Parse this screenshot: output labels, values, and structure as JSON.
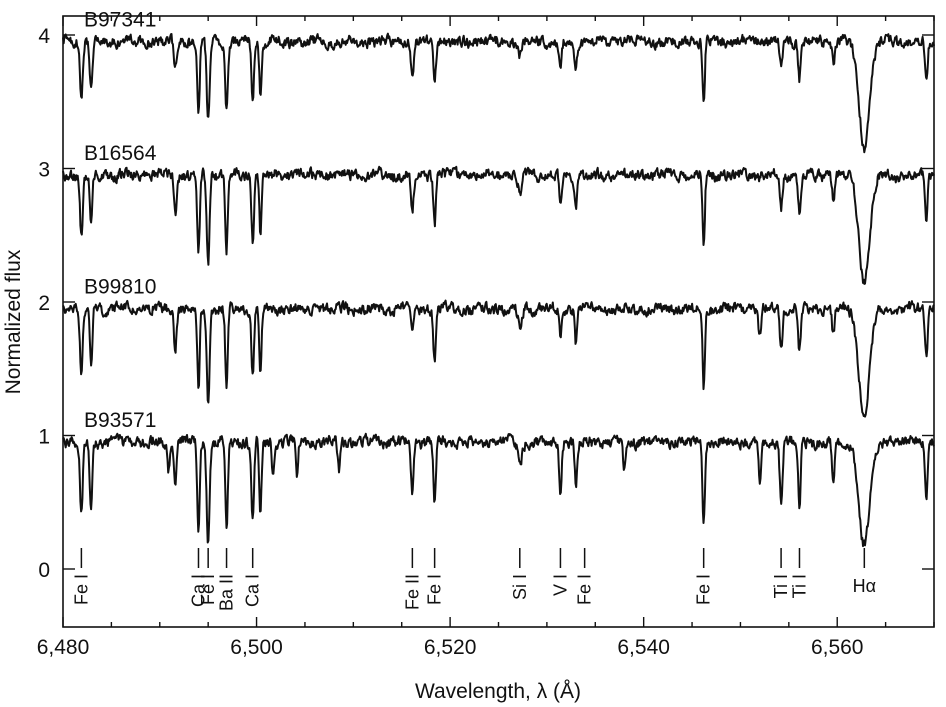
{
  "chart_data": {
    "type": "line",
    "xlabel": "Wavelength, λ (Å)",
    "ylabel": "Normalized flux",
    "xlim": [
      6480,
      6570
    ],
    "ylim": [
      -0.45,
      4.3
    ],
    "xticks": [
      6480,
      6500,
      6520,
      6540,
      6560
    ],
    "xtick_labels": [
      "6,480",
      "6,500",
      "6,520",
      "6,540",
      "6,560"
    ],
    "yticks": [
      0,
      1,
      2,
      3,
      4
    ],
    "ytick_labels": [
      "0",
      "1",
      "2",
      "3",
      "4"
    ],
    "grid": false,
    "series": [
      {
        "name": "B97341",
        "continuum": 3.95,
        "lines": [
          {
            "x": 6481.9,
            "depth": 0.38,
            "width": 0.14
          },
          {
            "x": 6482.9,
            "depth": 0.34,
            "width": 0.13
          },
          {
            "x": 6491.6,
            "depth": 0.22,
            "width": 0.14
          },
          {
            "x": 6494.0,
            "depth": 0.55,
            "width": 0.13
          },
          {
            "x": 6495.0,
            "depth": 0.62,
            "width": 0.15
          },
          {
            "x": 6496.9,
            "depth": 0.5,
            "width": 0.13
          },
          {
            "x": 6499.6,
            "depth": 0.42,
            "width": 0.13
          },
          {
            "x": 6500.4,
            "depth": 0.38,
            "width": 0.12
          },
          {
            "x": 6516.1,
            "depth": 0.26,
            "width": 0.14
          },
          {
            "x": 6518.4,
            "depth": 0.32,
            "width": 0.13
          },
          {
            "x": 6527.2,
            "depth": 0.12,
            "width": 0.2
          },
          {
            "x": 6531.4,
            "depth": 0.18,
            "width": 0.13
          },
          {
            "x": 6533.0,
            "depth": 0.2,
            "width": 0.13
          },
          {
            "x": 6546.2,
            "depth": 0.45,
            "width": 0.12
          },
          {
            "x": 6554.2,
            "depth": 0.22,
            "width": 0.13
          },
          {
            "x": 6556.1,
            "depth": 0.26,
            "width": 0.13
          },
          {
            "x": 6559.6,
            "depth": 0.16,
            "width": 0.13
          },
          {
            "x": 6562.8,
            "depth": 0.78,
            "width": 0.55
          },
          {
            "x": 6569.2,
            "depth": 0.3,
            "width": 0.13
          }
        ]
      },
      {
        "name": "B16564",
        "continuum": 2.95,
        "lines": [
          {
            "x": 6481.9,
            "depth": 0.45,
            "width": 0.14
          },
          {
            "x": 6482.9,
            "depth": 0.4,
            "width": 0.13
          },
          {
            "x": 6491.6,
            "depth": 0.28,
            "width": 0.14
          },
          {
            "x": 6494.0,
            "depth": 0.6,
            "width": 0.13
          },
          {
            "x": 6495.0,
            "depth": 0.68,
            "width": 0.15
          },
          {
            "x": 6496.9,
            "depth": 0.55,
            "width": 0.13
          },
          {
            "x": 6499.6,
            "depth": 0.48,
            "width": 0.13
          },
          {
            "x": 6500.4,
            "depth": 0.44,
            "width": 0.12
          },
          {
            "x": 6516.1,
            "depth": 0.28,
            "width": 0.14
          },
          {
            "x": 6518.4,
            "depth": 0.36,
            "width": 0.13
          },
          {
            "x": 6527.2,
            "depth": 0.14,
            "width": 0.2
          },
          {
            "x": 6531.4,
            "depth": 0.2,
            "width": 0.13
          },
          {
            "x": 6533.0,
            "depth": 0.24,
            "width": 0.13
          },
          {
            "x": 6546.2,
            "depth": 0.52,
            "width": 0.12
          },
          {
            "x": 6554.2,
            "depth": 0.26,
            "width": 0.13
          },
          {
            "x": 6556.1,
            "depth": 0.3,
            "width": 0.13
          },
          {
            "x": 6559.6,
            "depth": 0.2,
            "width": 0.13
          },
          {
            "x": 6562.8,
            "depth": 0.8,
            "width": 0.55
          },
          {
            "x": 6569.2,
            "depth": 0.34,
            "width": 0.13
          }
        ]
      },
      {
        "name": "B99810",
        "continuum": 1.95,
        "lines": [
          {
            "x": 6481.9,
            "depth": 0.48,
            "width": 0.14
          },
          {
            "x": 6482.9,
            "depth": 0.42,
            "width": 0.13
          },
          {
            "x": 6491.6,
            "depth": 0.3,
            "width": 0.14
          },
          {
            "x": 6494.0,
            "depth": 0.62,
            "width": 0.13
          },
          {
            "x": 6495.0,
            "depth": 0.7,
            "width": 0.15
          },
          {
            "x": 6496.9,
            "depth": 0.58,
            "width": 0.13
          },
          {
            "x": 6499.6,
            "depth": 0.5,
            "width": 0.13
          },
          {
            "x": 6500.4,
            "depth": 0.46,
            "width": 0.12
          },
          {
            "x": 6516.1,
            "depth": 0.22,
            "width": 0.14
          },
          {
            "x": 6518.4,
            "depth": 0.4,
            "width": 0.13
          },
          {
            "x": 6527.2,
            "depth": 0.14,
            "width": 0.2
          },
          {
            "x": 6531.4,
            "depth": 0.22,
            "width": 0.13
          },
          {
            "x": 6533.0,
            "depth": 0.26,
            "width": 0.13
          },
          {
            "x": 6546.2,
            "depth": 0.58,
            "width": 0.12
          },
          {
            "x": 6552.0,
            "depth": 0.22,
            "width": 0.13
          },
          {
            "x": 6554.2,
            "depth": 0.3,
            "width": 0.13
          },
          {
            "x": 6556.1,
            "depth": 0.34,
            "width": 0.13
          },
          {
            "x": 6559.6,
            "depth": 0.22,
            "width": 0.13
          },
          {
            "x": 6562.8,
            "depth": 0.8,
            "width": 0.55
          },
          {
            "x": 6569.2,
            "depth": 0.36,
            "width": 0.13
          }
        ]
      },
      {
        "name": "B93571",
        "continuum": 0.95,
        "lines": [
          {
            "x": 6481.9,
            "depth": 0.55,
            "width": 0.14
          },
          {
            "x": 6482.9,
            "depth": 0.5,
            "width": 0.13
          },
          {
            "x": 6490.9,
            "depth": 0.22,
            "width": 0.13
          },
          {
            "x": 6491.6,
            "depth": 0.3,
            "width": 0.14
          },
          {
            "x": 6494.0,
            "depth": 0.65,
            "width": 0.13
          },
          {
            "x": 6495.0,
            "depth": 0.75,
            "width": 0.15
          },
          {
            "x": 6496.9,
            "depth": 0.66,
            "width": 0.13
          },
          {
            "x": 6499.6,
            "depth": 0.56,
            "width": 0.13
          },
          {
            "x": 6500.4,
            "depth": 0.52,
            "width": 0.12
          },
          {
            "x": 6501.7,
            "depth": 0.22,
            "width": 0.12
          },
          {
            "x": 6504.2,
            "depth": 0.25,
            "width": 0.12
          },
          {
            "x": 6508.5,
            "depth": 0.22,
            "width": 0.13
          },
          {
            "x": 6516.1,
            "depth": 0.36,
            "width": 0.14
          },
          {
            "x": 6518.4,
            "depth": 0.45,
            "width": 0.13
          },
          {
            "x": 6527.2,
            "depth": 0.18,
            "width": 0.2
          },
          {
            "x": 6531.4,
            "depth": 0.38,
            "width": 0.13
          },
          {
            "x": 6533.0,
            "depth": 0.34,
            "width": 0.13
          },
          {
            "x": 6538.0,
            "depth": 0.22,
            "width": 0.12
          },
          {
            "x": 6546.2,
            "depth": 0.62,
            "width": 0.12
          },
          {
            "x": 6552.0,
            "depth": 0.3,
            "width": 0.13
          },
          {
            "x": 6554.2,
            "depth": 0.45,
            "width": 0.13
          },
          {
            "x": 6556.1,
            "depth": 0.5,
            "width": 0.13
          },
          {
            "x": 6559.6,
            "depth": 0.3,
            "width": 0.13
          },
          {
            "x": 6562.8,
            "depth": 0.78,
            "width": 0.55
          },
          {
            "x": 6569.2,
            "depth": 0.42,
            "width": 0.13
          }
        ]
      }
    ],
    "line_identifications": [
      {
        "x": 6481.9,
        "label": "Fe I"
      },
      {
        "x": 6494.0,
        "label": "Ca I"
      },
      {
        "x": 6495.0,
        "label": "Fe I"
      },
      {
        "x": 6496.9,
        "label": "Ba II"
      },
      {
        "x": 6499.6,
        "label": "Ca I"
      },
      {
        "x": 6516.1,
        "label": "Fe II"
      },
      {
        "x": 6518.4,
        "label": "Fe I"
      },
      {
        "x": 6527.2,
        "label": "Si I"
      },
      {
        "x": 6531.4,
        "label": "V I"
      },
      {
        "x": 6533.9,
        "label": "Fe I"
      },
      {
        "x": 6546.2,
        "label": "Fe I"
      },
      {
        "x": 6554.2,
        "label": "Ti I"
      },
      {
        "x": 6556.1,
        "label": "Ti I"
      },
      {
        "x": 6562.8,
        "label": "Hα"
      }
    ],
    "colors": {
      "line": "#111111",
      "background": "#ffffff"
    }
  }
}
